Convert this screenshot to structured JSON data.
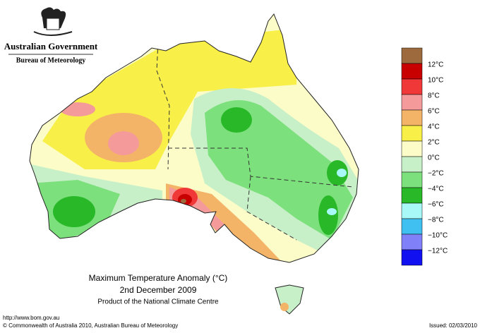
{
  "header": {
    "government": "Australian Government",
    "bureau": "Bureau of Meteorology"
  },
  "legend": {
    "colors": [
      "#9c6a3c",
      "#c80000",
      "#f03838",
      "#f49a9a",
      "#f4b468",
      "#f8f048",
      "#fcfcc8",
      "#c8f0c8",
      "#7ce07c",
      "#28b828",
      "#a8f8f8",
      "#40c0f0",
      "#8080f8",
      "#1010f0"
    ],
    "labels": [
      "12°C",
      "10°C",
      "8°C",
      "6°C",
      "4°C",
      "2°C",
      "0°C",
      "−2°C",
      "−4°C",
      "−6°C",
      "−8°C",
      "−10°C",
      "−12°C"
    ]
  },
  "title": {
    "line1": "Maximum Temperature Anomaly (°C)",
    "line2": "2nd December 2009",
    "line3": "Product of the National Climate Centre"
  },
  "footer": {
    "url": "http://www.bom.gov.au",
    "copyright": "© Commonwealth of Australia 2010, Australian Bureau of Meteorology",
    "issued": "Issued: 02/03/2010"
  }
}
